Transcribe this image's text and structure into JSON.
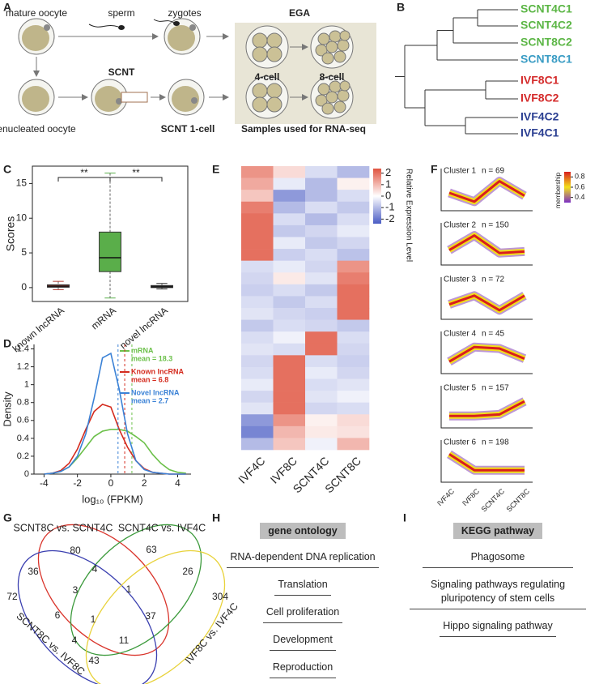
{
  "panel_labels": [
    "A",
    "B",
    "C",
    "D",
    "E",
    "F",
    "G",
    "H",
    "I"
  ],
  "schematic": {
    "mature_oocyte": "mature oocyte",
    "sperm": "sperm",
    "zygotes": "zygotes",
    "ega": "EGA",
    "four_cell": "4-cell",
    "eight_cell": "8-cell",
    "enucleated_oocyte": "enucleated oocyte",
    "scnt": "SCNT",
    "scnt_one_cell": "SCNT 1-cell",
    "samples": "Samples used for RNA-seq"
  },
  "dendrogram": {
    "leaves": [
      {
        "label": "SCNT4C1",
        "color": "#5cb646"
      },
      {
        "label": "SCNT4C2",
        "color": "#5cb646"
      },
      {
        "label": "SCNT8C2",
        "color": "#5cb646"
      },
      {
        "label": "SCNT8C1",
        "color": "#3a9cc4"
      },
      {
        "label": "IVF8C1",
        "color": "#d42a2a"
      },
      {
        "label": "IVF8C2",
        "color": "#d42a2a"
      },
      {
        "label": "IVF4C2",
        "color": "#2a3e91"
      },
      {
        "label": "IVF4C1",
        "color": "#2a3e91"
      }
    ]
  },
  "chart_data": [
    {
      "type": "box",
      "ylabel": "Scores",
      "categories": [
        "known lncRNA",
        "mRNA",
        "novel lncRNA"
      ],
      "boxes": [
        {
          "min": -0.3,
          "q1": 0.05,
          "median": 0.2,
          "q3": 0.4,
          "max": 0.9,
          "color": "#b5443a"
        },
        {
          "min": -1.5,
          "q1": 2.3,
          "median": 4.3,
          "q3": 8,
          "max": 16.5,
          "color": "#5aae4a"
        },
        {
          "min": -0.2,
          "q1": 0,
          "median": 0.1,
          "q3": 0.3,
          "max": 0.6,
          "color": "#333333"
        }
      ],
      "ylim": [
        -2,
        17.5
      ],
      "yticks": [
        0,
        5,
        10,
        15
      ],
      "annotations": [
        "**",
        "**"
      ]
    },
    {
      "type": "line",
      "ylabel": "Density",
      "xlabel": "log₁₀ (FPKM)",
      "x": [
        -4,
        -3.5,
        -3,
        -2.5,
        -2,
        -1.5,
        -1,
        -0.5,
        0,
        0.5,
        1,
        1.5,
        2,
        2.5,
        3,
        3.5,
        4,
        4.5
      ],
      "series": [
        {
          "name": "mRNA",
          "mean_label": "mean = 18.3",
          "mean_x": 1.26,
          "color": "#6cc04a",
          "values": [
            0,
            0.01,
            0.03,
            0.08,
            0.18,
            0.3,
            0.42,
            0.48,
            0.5,
            0.5,
            0.48,
            0.42,
            0.35,
            0.22,
            0.12,
            0.05,
            0.02,
            0.01
          ]
        },
        {
          "name": "Known lncRNA",
          "mean_label": "mean = 6.8",
          "mean_x": 0.83,
          "color": "#d42b1e",
          "values": [
            0,
            0.01,
            0.04,
            0.12,
            0.28,
            0.5,
            0.7,
            0.78,
            0.75,
            0.5,
            0.3,
            0.15,
            0.06,
            0.02,
            0.01,
            0,
            0,
            0
          ]
        },
        {
          "name": "Novel lncRNA",
          "mean_label": "mean = 2.7",
          "mean_x": 0.43,
          "color": "#3b82d6",
          "values": [
            0,
            0.01,
            0.03,
            0.08,
            0.2,
            0.45,
            0.85,
            1.3,
            1.35,
            0.95,
            0.45,
            0.15,
            0.05,
            0.02,
            0.01,
            0,
            0,
            0
          ]
        }
      ],
      "xlim": [
        -4.6,
        4.8
      ],
      "xticks": [
        -4,
        -2,
        0,
        2,
        4
      ],
      "ylim": [
        0,
        1.45
      ],
      "yticks": [
        0,
        0.2,
        0.4,
        0.6,
        0.8,
        1,
        1.2,
        1.4
      ]
    },
    {
      "type": "heatmap",
      "categories": [
        "IVF4C",
        "IVF8C",
        "SCNT4C",
        "SCNT8C"
      ],
      "values": [
        [
          1.5,
          0.5,
          -0.5,
          -1
        ],
        [
          1.2,
          -0.3,
          -1,
          0.2
        ],
        [
          0.8,
          -1.5,
          -1,
          -0.5
        ],
        [
          1.8,
          -1,
          -0.5,
          -0.8
        ],
        [
          2,
          -0.5,
          -1,
          -0.5
        ],
        [
          2,
          -0.8,
          -0.6,
          -0.3
        ],
        [
          2,
          -0.3,
          -0.8,
          -0.6
        ],
        [
          2,
          -0.7,
          -0.5,
          -0.9
        ],
        [
          -0.5,
          -0.3,
          -0.6,
          1.5
        ],
        [
          -0.6,
          0.3,
          -0.4,
          1.8
        ],
        [
          -0.7,
          -0.5,
          -0.8,
          2
        ],
        [
          -0.5,
          -0.8,
          -0.5,
          2
        ],
        [
          -0.4,
          -0.6,
          -0.7,
          2
        ],
        [
          -0.8,
          -0.5,
          -0.6,
          -0.8
        ],
        [
          -0.5,
          -0.2,
          2,
          -0.5
        ],
        [
          -0.4,
          -0.5,
          2,
          -0.6
        ],
        [
          -0.6,
          2,
          -0.5,
          -0.7
        ],
        [
          -0.5,
          2,
          -0.3,
          -0.6
        ],
        [
          -0.3,
          2,
          -0.5,
          -0.4
        ],
        [
          -0.6,
          2,
          -0.4,
          -0.2
        ],
        [
          -0.4,
          2,
          -0.6,
          -0.5
        ],
        [
          -1.5,
          1.5,
          0.2,
          0.5
        ],
        [
          -1.8,
          1,
          0.3,
          0.4
        ],
        [
          -1,
          0.8,
          -0.2,
          1
        ]
      ],
      "colorbar_label": "Relative Expression Level",
      "clim": [
        -2.4,
        2.4
      ],
      "cticks": [
        2,
        1,
        0,
        -1,
        -2
      ],
      "colors": [
        "#4a5cc4",
        "#ffffff",
        "#e0533f"
      ]
    },
    {
      "type": "profiles",
      "categories": [
        "IVF4C",
        "IVF8C",
        "SCNT4C",
        "SCNT8C"
      ],
      "ylim": [
        0,
        1
      ],
      "clusters": [
        {
          "title": "Cluster 1",
          "n_label": "n = 69",
          "values": [
            0.5,
            0.2,
            0.9,
            0.4
          ]
        },
        {
          "title": "Cluster 2",
          "n_label": "n = 150",
          "values": [
            0.4,
            0.9,
            0.3,
            0.35
          ]
        },
        {
          "title": "Cluster 3",
          "n_label": "n = 72",
          "values": [
            0.4,
            0.7,
            0.2,
            0.7
          ]
        },
        {
          "title": "Cluster 4",
          "n_label": "n = 45",
          "values": [
            0.3,
            0.8,
            0.75,
            0.4
          ]
        },
        {
          "title": "Cluster 5",
          "n_label": "n = 157",
          "values": [
            0.3,
            0.3,
            0.35,
            0.8
          ]
        },
        {
          "title": "Cluster 6",
          "n_label": "n = 198",
          "values": [
            0.85,
            0.3,
            0.3,
            0.3
          ]
        }
      ],
      "colorbar_label": "membership",
      "clim": [
        0.3,
        0.9
      ],
      "cticks": [
        0.8,
        0.6,
        0.4
      ],
      "colors": [
        "#7a2ec4",
        "#f2e01a",
        "#d81e1e"
      ]
    }
  ],
  "venn": {
    "sets": [
      {
        "label": "SCNT8C vs. SCNT4C",
        "color": "#d9342b"
      },
      {
        "label": "SCNT4C vs. IVF4C",
        "color": "#3c9a3c"
      },
      {
        "label": "SCNT8C vs. IVF8C",
        "color": "#3a3fb0"
      },
      {
        "label": "IVF8C vs. IVF4C",
        "color": "#e8d23a"
      }
    ],
    "counts": [
      80,
      63,
      36,
      4,
      26,
      3,
      1,
      72,
      304,
      6,
      1,
      37,
      4,
      11,
      43
    ]
  },
  "gene_ontology": {
    "title": "gene ontology",
    "terms": [
      "RNA-dependent DNA replication",
      "Translation",
      "Cell proliferation",
      "Development",
      "Reproduction"
    ]
  },
  "kegg": {
    "title": "KEGG pathway",
    "terms": [
      "Phagosome",
      "Signaling pathways regulating pluripotency of stem cells",
      "Hippo signaling pathway"
    ]
  }
}
